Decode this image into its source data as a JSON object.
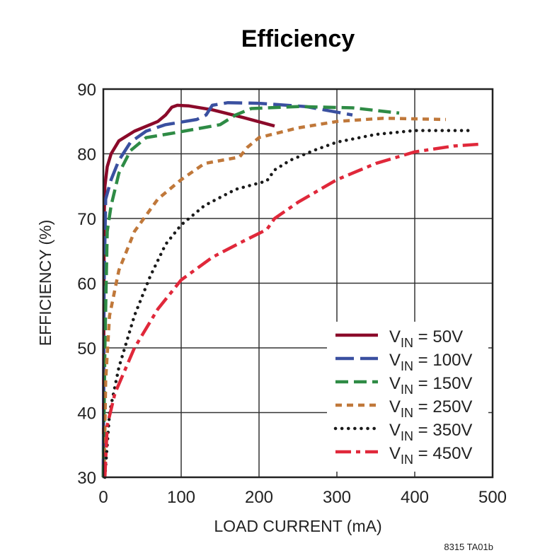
{
  "chart_data": {
    "type": "line",
    "title": "Efficiency",
    "xlabel": "LOAD CURRENT (mA)",
    "ylabel": "EFFICIENCY (%)",
    "xlim": [
      0,
      500
    ],
    "ylim": [
      30,
      90
    ],
    "xticks": [
      0,
      100,
      200,
      300,
      400,
      500
    ],
    "yticks": [
      30,
      40,
      50,
      60,
      70,
      80,
      90
    ],
    "grid": true,
    "legend_position": "bottom-right",
    "note": "8315 TA01b",
    "series": [
      {
        "name": "VIN = 50V",
        "label_main": "V",
        "label_sub": "IN",
        "label_rest": " = 50V",
        "color": "#8b0a2a",
        "dash": "solid",
        "points": [
          [
            0,
            30
          ],
          [
            1,
            70
          ],
          [
            2,
            75
          ],
          [
            5,
            78
          ],
          [
            10,
            80
          ],
          [
            20,
            82
          ],
          [
            40,
            83.5
          ],
          [
            70,
            85
          ],
          [
            80,
            86
          ],
          [
            88,
            87.2
          ],
          [
            95,
            87.5
          ],
          [
            110,
            87.4
          ],
          [
            140,
            86.8
          ],
          [
            180,
            85.6
          ],
          [
            220,
            84.3
          ]
        ]
      },
      {
        "name": "VIN = 100V",
        "label_main": "V",
        "label_sub": "IN",
        "label_rest": " = 100V",
        "color": "#3a50a0",
        "dash": "long",
        "points": [
          [
            0,
            30
          ],
          [
            1,
            60
          ],
          [
            3,
            73
          ],
          [
            10,
            76
          ],
          [
            20,
            79
          ],
          [
            35,
            81.8
          ],
          [
            55,
            83.5
          ],
          [
            80,
            84.5
          ],
          [
            120,
            85.3
          ],
          [
            132,
            86
          ],
          [
            140,
            87.5
          ],
          [
            160,
            87.9
          ],
          [
            200,
            87.8
          ],
          [
            260,
            87.3
          ],
          [
            320,
            86
          ]
        ]
      },
      {
        "name": "VIN = 150V",
        "label_main": "V",
        "label_sub": "IN",
        "label_rest": " = 150V",
        "color": "#2e8b45",
        "dash": "medium",
        "points": [
          [
            0,
            30
          ],
          [
            2,
            50
          ],
          [
            5,
            68
          ],
          [
            10,
            72
          ],
          [
            20,
            77
          ],
          [
            35,
            80.5
          ],
          [
            55,
            82.5
          ],
          [
            90,
            83.2
          ],
          [
            150,
            84.5
          ],
          [
            170,
            86
          ],
          [
            190,
            87
          ],
          [
            250,
            87.3
          ],
          [
            320,
            87.1
          ],
          [
            380,
            86.3
          ]
        ]
      },
      {
        "name": "VIN = 250V",
        "label_main": "V",
        "label_sub": "IN",
        "label_rest": " = 250V",
        "color": "#c0783a",
        "dash": "short",
        "points": [
          [
            1,
            30
          ],
          [
            3,
            45
          ],
          [
            8,
            55
          ],
          [
            20,
            62
          ],
          [
            40,
            68
          ],
          [
            70,
            73
          ],
          [
            100,
            76
          ],
          [
            130,
            78.5
          ],
          [
            175,
            79.5
          ],
          [
            185,
            81
          ],
          [
            200,
            82.5
          ],
          [
            250,
            84
          ],
          [
            300,
            85
          ],
          [
            360,
            85.5
          ],
          [
            440,
            85.3
          ]
        ]
      },
      {
        "name": "VIN = 350V",
        "label_main": "V",
        "label_sub": "IN",
        "label_rest": " = 350V",
        "color": "#1a1a1a",
        "dash": "dotted",
        "points": [
          [
            2,
            30
          ],
          [
            8,
            40
          ],
          [
            20,
            47
          ],
          [
            40,
            55
          ],
          [
            60,
            61
          ],
          [
            80,
            66
          ],
          [
            100,
            69
          ],
          [
            130,
            72
          ],
          [
            170,
            74.5
          ],
          [
            210,
            75.8
          ],
          [
            220,
            77.5
          ],
          [
            240,
            79
          ],
          [
            270,
            80.5
          ],
          [
            300,
            81.8
          ],
          [
            350,
            83
          ],
          [
            400,
            83.6
          ],
          [
            470,
            83.6
          ]
        ]
      },
      {
        "name": "VIN = 450V",
        "label_main": "V",
        "label_sub": "IN",
        "label_rest": " = 450V",
        "color": "#e0283a",
        "dash": "dashdot",
        "points": [
          [
            2,
            30
          ],
          [
            5,
            38
          ],
          [
            15,
            43
          ],
          [
            40,
            50
          ],
          [
            70,
            56
          ],
          [
            100,
            60.5
          ],
          [
            140,
            64
          ],
          [
            180,
            66.5
          ],
          [
            210,
            68.3
          ],
          [
            220,
            70
          ],
          [
            250,
            72.5
          ],
          [
            300,
            76
          ],
          [
            350,
            78.5
          ],
          [
            400,
            80.3
          ],
          [
            450,
            81.2
          ],
          [
            485,
            81.5
          ]
        ]
      }
    ]
  }
}
